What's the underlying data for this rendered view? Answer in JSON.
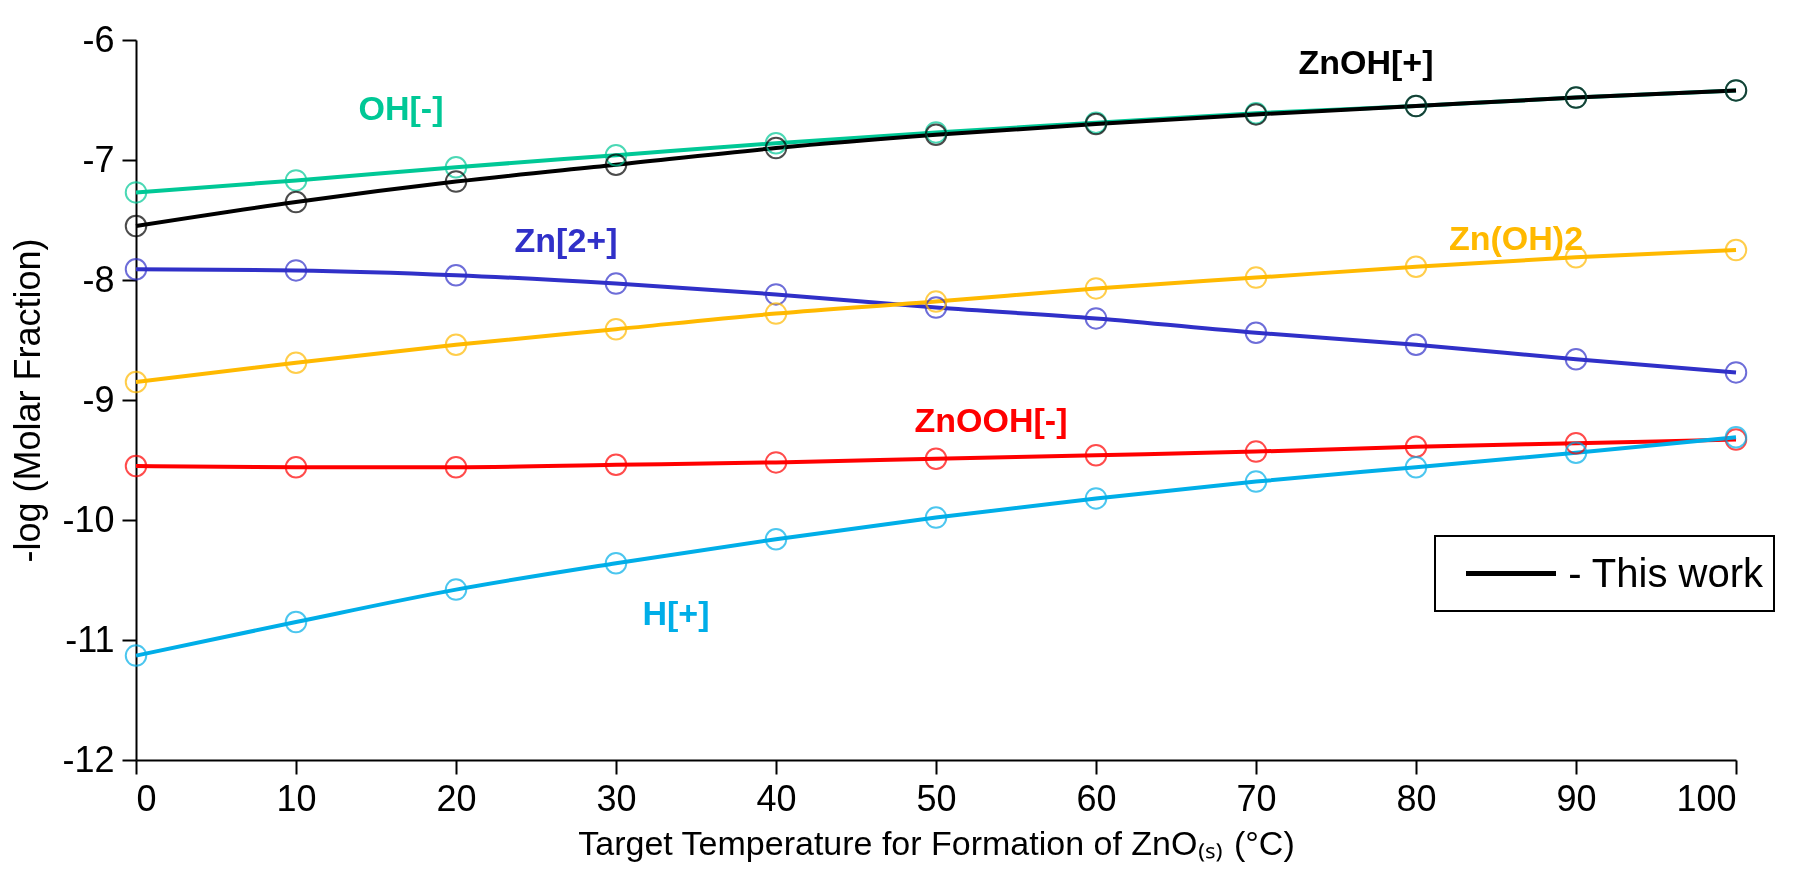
{
  "chart_data": {
    "type": "line",
    "xlabel": "Target Temperature for Formation of ZnO₍ₛ₎ (°C)",
    "ylabel": "-log (Molar Fraction)",
    "x": [
      0,
      10,
      20,
      30,
      40,
      50,
      60,
      70,
      80,
      90,
      100
    ],
    "xlim": [
      0,
      100
    ],
    "xticks": [
      0,
      10,
      20,
      30,
      40,
      50,
      60,
      70,
      80,
      90,
      100
    ],
    "ylim": [
      -12,
      -6
    ],
    "yticks": [
      -12,
      -11,
      -10,
      -9,
      -8,
      -7,
      -6
    ],
    "grid": false,
    "marker": "circle",
    "line_style": "solid",
    "annotations": [
      "- This work"
    ],
    "series": [
      {
        "name": "OH[-]",
        "color": "#00c896",
        "values": [
          -7.27,
          -7.17,
          -7.06,
          -6.96,
          -6.86,
          -6.77,
          -6.69,
          -6.61,
          -6.55,
          -6.48,
          -6.42
        ]
      },
      {
        "name": "ZnOH[+]",
        "color": "#000000",
        "values": [
          -7.55,
          -7.35,
          -7.18,
          -7.04,
          -6.9,
          -6.79,
          -6.7,
          -6.62,
          -6.55,
          -6.48,
          -6.42
        ]
      },
      {
        "name": "Zn[2+]",
        "color": "#3030c8",
        "values": [
          -7.91,
          -7.92,
          -7.96,
          -8.03,
          -8.12,
          -8.23,
          -8.32,
          -8.44,
          -8.54,
          -8.66,
          -8.77
        ]
      },
      {
        "name": "Zn(OH)2",
        "color": "#ffb900",
        "values": [
          -8.85,
          -8.69,
          -8.54,
          -8.41,
          -8.28,
          -8.18,
          -8.07,
          -7.98,
          -7.89,
          -7.81,
          -7.75
        ]
      },
      {
        "name": "ZnOOH[-]",
        "color": "#ff0000",
        "values": [
          -9.55,
          -9.56,
          -9.56,
          -9.54,
          -9.52,
          -9.49,
          -9.46,
          -9.43,
          -9.39,
          -9.36,
          -9.33
        ]
      },
      {
        "name": "H[+]",
        "color": "#00aee8",
        "values": [
          -11.13,
          -10.85,
          -10.58,
          -10.36,
          -10.16,
          -9.98,
          -9.82,
          -9.68,
          -9.56,
          -9.44,
          -9.31
        ]
      }
    ]
  }
}
